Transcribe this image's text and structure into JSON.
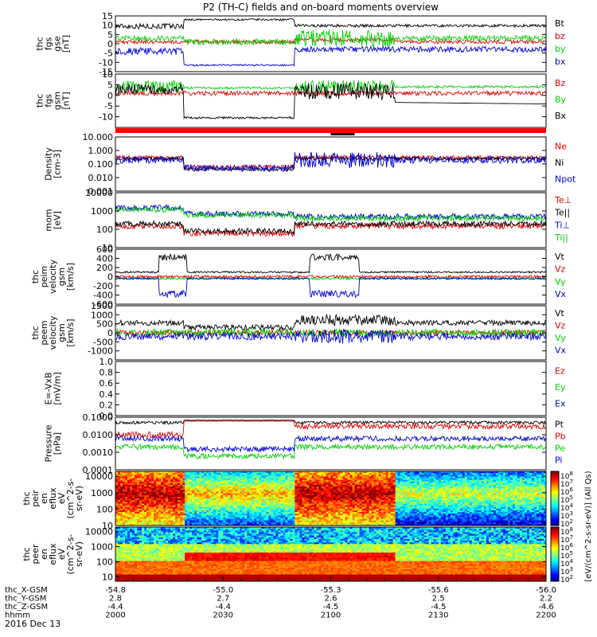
{
  "title": "P2 (TH-C) fields and on-board moments overview",
  "date_label": "2016 Dec 13",
  "colors": {
    "black": "#000000",
    "red": "#e00000",
    "green": "#00d000",
    "blue": "#0000d0",
    "bar_red": "#ff0000"
  },
  "chart_data": {
    "type": "line",
    "x_axis": {
      "times": [
        2000,
        2030,
        2100,
        2130,
        2200
      ],
      "time_range_min": [
        0,
        120
      ],
      "rows": [
        {
          "label": "thc_X-GSM",
          "values": [
            "-54.8",
            "-55.0",
            "-55.3",
            "-55.6",
            "-56.0"
          ]
        },
        {
          "label": "thc_Y-GSM",
          "values": [
            "2.8",
            "2.7",
            "2.6",
            "2.5",
            "2.2"
          ]
        },
        {
          "label": "thc_Z-GSM",
          "values": [
            "-4.4",
            "-4.4",
            "-4.5",
            "-4.5",
            "-4.6"
          ]
        },
        {
          "label": "hhmm",
          "values": [
            "2000",
            "2030",
            "2100",
            "2130",
            "2200"
          ]
        }
      ]
    },
    "panels": [
      {
        "id": "fgs_gse",
        "scale": "linear",
        "ylim": [
          -15,
          15
        ],
        "ylabel": [
          "thc",
          "fgs",
          "gse",
          "[nT]"
        ],
        "ticks": [
          "15",
          "10",
          "5",
          "0",
          "-5",
          "-10",
          "-15"
        ],
        "tick_values": [
          15,
          10,
          5,
          0,
          -5,
          -10,
          -15
        ],
        "legend": [
          {
            "label": "Bt",
            "color": "#000000"
          },
          {
            "label": "bz",
            "color": "#e00000"
          },
          {
            "label": "by",
            "color": "#00d000"
          },
          {
            "label": "bx",
            "color": "#0000d0"
          }
        ]
      },
      {
        "id": "fgs_gsm",
        "scale": "linear",
        "ylim": [
          -15,
          10
        ],
        "ylabel": [
          "thc",
          "fgs",
          "gsm",
          "[nT]"
        ],
        "ticks": [
          "10",
          "5",
          "0",
          "-5",
          "-10"
        ],
        "tick_values": [
          10,
          5,
          0,
          -5,
          -10
        ],
        "legend": [
          {
            "label": "Bz",
            "color": "#e00000"
          },
          {
            "label": "By",
            "color": "#00d000"
          },
          {
            "label": "Bx",
            "color": "#000000"
          }
        ]
      },
      {
        "id": "density",
        "scale": "log",
        "ylim": [
          0.001,
          10
        ],
        "ylabel": [
          "Density",
          "[cm-3]"
        ],
        "ticks": [
          "10.000",
          "1.000",
          "0.100",
          "0.010",
          "0.001"
        ],
        "tick_values": [
          10,
          1,
          0.1,
          0.01,
          0.001
        ],
        "legend": [
          {
            "label": "Ne",
            "color": "#e00000"
          },
          {
            "label": "Ni",
            "color": "#000000"
          },
          {
            "label": "Npot",
            "color": "#0000d0"
          }
        ]
      },
      {
        "id": "temperature",
        "scale": "log",
        "ylim": [
          10,
          10000
        ],
        "ylabel": [
          "mom",
          "[eV]"
        ],
        "ticks": [
          "10000",
          "1000",
          "100",
          "10"
        ],
        "tick_values": [
          10000,
          1000,
          100,
          10
        ],
        "legend": [
          {
            "label": "Te⊥",
            "color": "#e00000"
          },
          {
            "label": "Te||",
            "color": "#000000"
          },
          {
            "label": "Ti⊥",
            "color": "#0000d0"
          },
          {
            "label": "Ti||",
            "color": "#00d000"
          }
        ]
      },
      {
        "id": "peim_velocity",
        "scale": "linear",
        "ylim": [
          -600,
          600
        ],
        "ylabel": [
          "thc",
          "peim",
          "velocity",
          "gsm",
          "[km/s]"
        ],
        "ticks": [
          "600",
          "400",
          "200",
          "0",
          "-200",
          "-400",
          "-600"
        ],
        "tick_values": [
          600,
          400,
          200,
          0,
          -200,
          -400,
          -600
        ],
        "legend": [
          {
            "label": "Vt",
            "color": "#000000"
          },
          {
            "label": "Vz",
            "color": "#e00000"
          },
          {
            "label": "Vy",
            "color": "#00d000"
          },
          {
            "label": "Vx",
            "color": "#0000d0"
          }
        ]
      },
      {
        "id": "peem_velocity",
        "scale": "linear",
        "ylim": [
          -1500,
          1500
        ],
        "ylabel": [
          "thc",
          "peem",
          "velocity",
          "gsm",
          "[km/s]"
        ],
        "ticks": [
          "1500",
          "1000",
          "500",
          "0",
          "-500",
          "-1000"
        ],
        "tick_values": [
          1500,
          1000,
          500,
          0,
          -500,
          -1000
        ],
        "legend": [
          {
            "label": "Vt",
            "color": "#000000"
          },
          {
            "label": "Vz",
            "color": "#e00000"
          },
          {
            "label": "Vy",
            "color": "#00d000"
          },
          {
            "label": "Vx",
            "color": "#0000d0"
          }
        ]
      },
      {
        "id": "efield",
        "scale": "linear",
        "ylim": [
          0,
          1
        ],
        "ylabel": [
          "E=-VxB",
          "[mV/m]"
        ],
        "ticks": [
          "1.0",
          "0.8",
          "0.6",
          "0.4",
          "0.2",
          "0.0"
        ],
        "tick_values": [
          1.0,
          0.8,
          0.6,
          0.4,
          0.2,
          0.0
        ],
        "legend": [
          {
            "label": "Ez",
            "color": "#e00000"
          },
          {
            "label": "Ey",
            "color": "#00d000"
          },
          {
            "label": "Ex",
            "color": "#0000d0"
          }
        ]
      },
      {
        "id": "pressure",
        "scale": "log",
        "ylim": [
          0.0001,
          0.1
        ],
        "ylabel": [
          "Pressure",
          "[nPa]"
        ],
        "ticks": [
          "0.1000",
          "0.0100",
          "0.0010",
          "0.0001"
        ],
        "tick_values": [
          0.1,
          0.01,
          0.001,
          0.0001
        ],
        "legend": [
          {
            "label": "Pt",
            "color": "#000000"
          },
          {
            "label": "Pb",
            "color": "#e00000"
          },
          {
            "label": "Pe",
            "color": "#00d000"
          },
          {
            "label": "Pi",
            "color": "#0000d0"
          }
        ]
      },
      {
        "id": "peir_eflux",
        "scale": "log",
        "type": "heatmap",
        "ylim": [
          10,
          20000
        ],
        "ylabel": [
          "thc",
          "peir",
          "en",
          "eflux",
          "eV",
          "(cm^2-s-",
          "sr-eV)"
        ],
        "ticks": [
          "10000",
          "1000",
          "100",
          "10"
        ],
        "tick_values": [
          10000,
          1000,
          100,
          10
        ]
      },
      {
        "id": "peer_eflux",
        "scale": "log",
        "type": "heatmap",
        "ylim": [
          5,
          20000
        ],
        "ylabel": [
          "thc",
          "peer",
          "en",
          "eflux",
          "eV",
          "(cm^2-s-",
          "sr-eV)"
        ],
        "ticks": [
          "10000",
          "1000",
          "100",
          "10"
        ],
        "tick_values": [
          10000,
          1000,
          100,
          10
        ]
      }
    ],
    "colorbar": {
      "label": "[eV/(cm^2-s-sr-eV)] (All Qs)",
      "ticks": [
        "10^8",
        "10^7",
        "10^6",
        "10^5",
        "10^4",
        "10^3",
        "10^2"
      ]
    }
  }
}
